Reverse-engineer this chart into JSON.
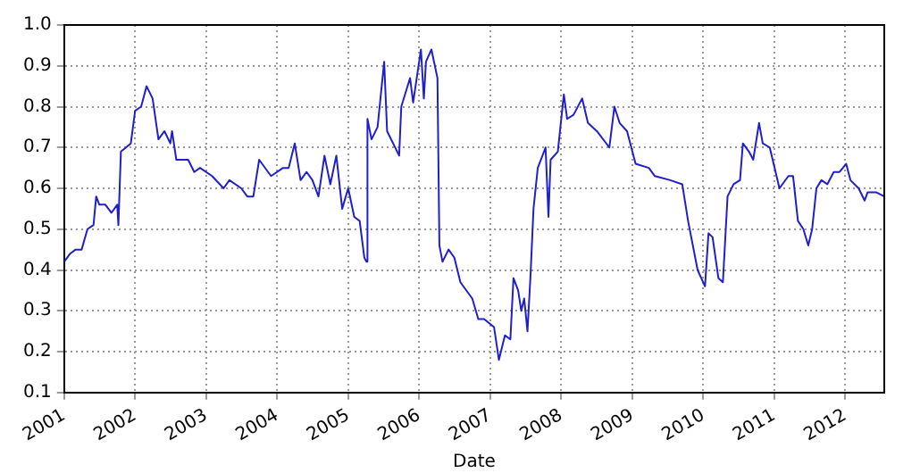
{
  "chart_data": {
    "type": "line",
    "xlabel": "Date",
    "x": [
      "2001-01-01",
      "2001-02-01",
      "2001-03-01",
      "2001-04-01",
      "2001-05-01",
      "2001-06-01",
      "2001-06-15",
      "2001-07-01",
      "2001-08-01",
      "2001-09-01",
      "2001-10-01",
      "2001-10-07",
      "2001-10-20",
      "2001-11-15",
      "2001-12-10",
      "2002-01-01",
      "2002-02-01",
      "2002-03-01",
      "2002-04-01",
      "2002-05-01",
      "2002-06-01",
      "2002-07-01",
      "2002-07-10",
      "2002-08-01",
      "2002-10-01",
      "2002-11-01",
      "2002-12-01",
      "2003-02-01",
      "2003-04-01",
      "2003-05-01",
      "2003-07-01",
      "2003-08-01",
      "2003-09-01",
      "2003-10-01",
      "2003-12-01",
      "2004-02-01",
      "2004-03-01",
      "2004-04-01",
      "2004-05-01",
      "2004-06-01",
      "2004-07-01",
      "2004-08-01",
      "2004-09-01",
      "2004-10-01",
      "2004-11-01",
      "2004-12-01",
      "2005-01-01",
      "2005-02-01",
      "2005-03-01",
      "2005-03-25",
      "2005-04-05",
      "2005-04-10",
      "2005-05-01",
      "2005-06-01",
      "2005-07-05",
      "2005-07-20",
      "2005-09-20",
      "2005-10-01",
      "2005-11-15",
      "2005-12-01",
      "2006-01-10",
      "2006-01-25",
      "2006-02-05",
      "2006-03-05",
      "2006-04-05",
      "2006-04-15",
      "2006-05-01",
      "2006-06-01",
      "2006-07-01",
      "2006-08-01",
      "2006-10-01",
      "2006-11-01",
      "2006-12-01",
      "2007-01-21",
      "2007-02-15",
      "2007-03-18",
      "2007-04-15",
      "2007-05-01",
      "2007-05-25",
      "2007-06-10",
      "2007-06-25",
      "2007-07-12",
      "2007-07-28",
      "2007-08-12",
      "2007-09-03",
      "2007-10-13",
      "2007-10-28",
      "2007-11-08",
      "2007-12-15",
      "2008-01-15",
      "2008-02-01",
      "2008-03-05",
      "2008-04-18",
      "2008-05-18",
      "2008-07-03",
      "2008-09-05",
      "2008-10-01",
      "2008-10-28",
      "2008-12-05",
      "2009-01-18",
      "2009-03-27",
      "2009-04-27",
      "2009-07-15",
      "2009-09-15",
      "2009-10-15",
      "2009-12-03",
      "2010-01-10",
      "2010-01-28",
      "2010-02-18",
      "2010-03-20",
      "2010-04-12",
      "2010-05-06",
      "2010-06-06",
      "2010-07-09",
      "2010-07-24",
      "2010-08-24",
      "2010-09-15",
      "2010-10-15",
      "2010-11-03",
      "2010-12-09",
      "2011-01-28",
      "2011-03-15",
      "2011-04-08",
      "2011-05-03",
      "2011-05-31",
      "2011-06-25",
      "2011-07-15",
      "2011-08-06",
      "2011-09-01",
      "2011-10-01",
      "2011-11-03",
      "2011-12-03",
      "2012-01-06",
      "2012-01-28",
      "2012-03-10",
      "2012-04-10",
      "2012-04-25",
      "2012-06-10",
      "2012-07-20"
    ],
    "series": [
      {
        "color": "#1f1fcc",
        "values": [
          0.42,
          0.44,
          0.45,
          0.45,
          0.5,
          0.51,
          0.58,
          0.56,
          0.56,
          0.54,
          0.56,
          0.51,
          0.69,
          0.7,
          0.71,
          0.79,
          0.8,
          0.85,
          0.82,
          0.72,
          0.74,
          0.71,
          0.74,
          0.67,
          0.67,
          0.64,
          0.65,
          0.63,
          0.6,
          0.62,
          0.6,
          0.58,
          0.58,
          0.67,
          0.63,
          0.65,
          0.65,
          0.71,
          0.62,
          0.64,
          0.62,
          0.58,
          0.68,
          0.61,
          0.68,
          0.55,
          0.6,
          0.53,
          0.52,
          0.43,
          0.42,
          0.77,
          0.72,
          0.75,
          0.91,
          0.74,
          0.68,
          0.8,
          0.87,
          0.81,
          0.94,
          0.82,
          0.91,
          0.94,
          0.87,
          0.46,
          0.42,
          0.45,
          0.43,
          0.37,
          0.33,
          0.28,
          0.28,
          0.26,
          0.18,
          0.24,
          0.23,
          0.38,
          0.35,
          0.3,
          0.33,
          0.25,
          0.39,
          0.55,
          0.65,
          0.7,
          0.53,
          0.67,
          0.69,
          0.83,
          0.77,
          0.78,
          0.82,
          0.76,
          0.74,
          0.7,
          0.8,
          0.76,
          0.74,
          0.66,
          0.65,
          0.63,
          0.62,
          0.61,
          0.52,
          0.4,
          0.36,
          0.49,
          0.48,
          0.38,
          0.37,
          0.58,
          0.61,
          0.62,
          0.71,
          0.69,
          0.67,
          0.76,
          0.71,
          0.7,
          0.6,
          0.63,
          0.63,
          0.52,
          0.5,
          0.46,
          0.5,
          0.6,
          0.62,
          0.61,
          0.64,
          0.64,
          0.66,
          0.62,
          0.6,
          0.57,
          0.59,
          0.59,
          0.58
        ]
      }
    ],
    "xlim": [
      "2001-01-01",
      "2012-07-20"
    ],
    "xticks": [
      "2001",
      "2002",
      "2003",
      "2004",
      "2005",
      "2006",
      "2007",
      "2008",
      "2009",
      "2010",
      "2011",
      "2012"
    ],
    "ylim": [
      0.1,
      1.0
    ],
    "yticks": [
      0.1,
      0.2,
      0.3,
      0.4,
      0.5,
      0.6,
      0.7,
      0.8,
      0.9,
      {
        "value": 1.0,
        "label": "1.0"
      }
    ],
    "grid": true,
    "line_style": "solid",
    "marker": "none",
    "legend": false
  }
}
